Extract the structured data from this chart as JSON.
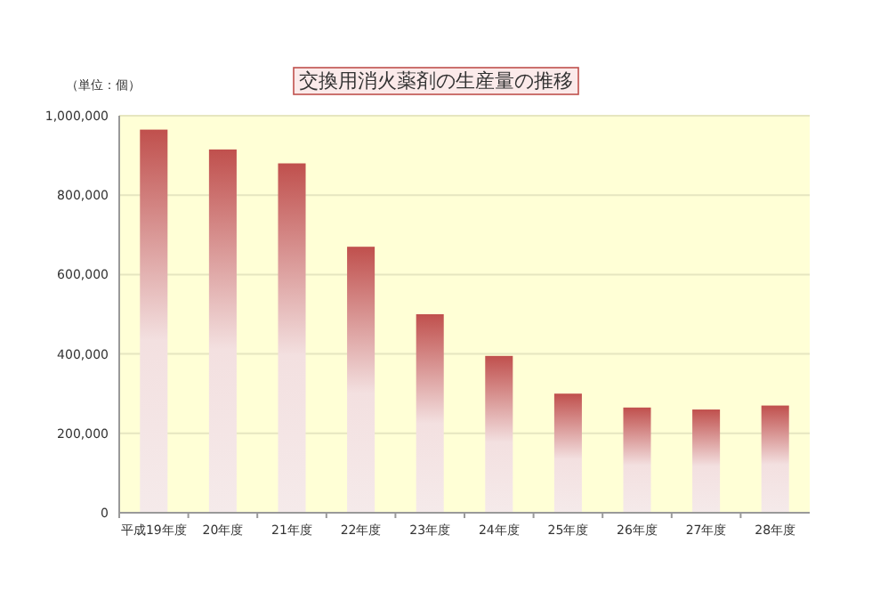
{
  "chart_data": {
    "type": "bar",
    "title": "交換用消火薬剤の生産量の推移",
    "ylabel": "（単位：個）",
    "categories": [
      "平成19年度",
      "20年度",
      "21年度",
      "22年度",
      "23年度",
      "24年度",
      "25年度",
      "26年度",
      "27年度",
      "28年度"
    ],
    "values": [
      965000,
      915000,
      880000,
      670000,
      500000,
      395000,
      300000,
      265000,
      260000,
      270000
    ],
    "color": "#c0504d",
    "ylim": [
      0,
      1000000
    ],
    "yticks": [
      0,
      {
        "value": 200000,
        "label": "200,000"
      },
      {
        "value": 400000,
        "label": "400,000"
      },
      {
        "value": 600000,
        "label": "600,000"
      },
      {
        "value": 800000,
        "label": "800,000"
      },
      {
        "value": 1000000,
        "label": "1,000,000"
      }
    ],
    "grid": "y"
  }
}
